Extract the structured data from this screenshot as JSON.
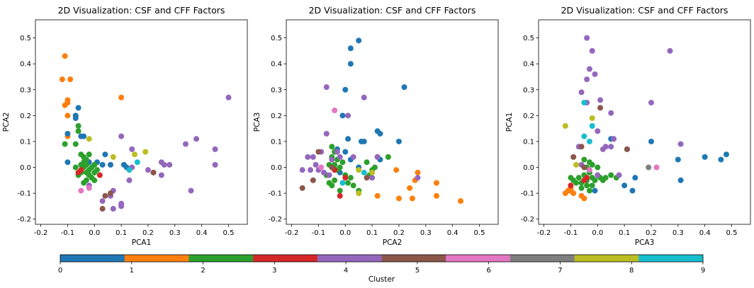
{
  "cluster_colors": [
    "#1f77b4",
    "#ff7f0e",
    "#2ca02c",
    "#d62728",
    "#9467bd",
    "#8c564b",
    "#e377c2",
    "#7f7f7f",
    "#bcbd22",
    "#17becf"
  ],
  "colorbar": {
    "label": "Cluster",
    "ticks": [
      "0",
      "1",
      "2",
      "3",
      "4",
      "5",
      "6",
      "7",
      "8",
      "9"
    ]
  },
  "chart_data": [
    {
      "type": "scatter",
      "title": "2D Visualization: CSF and CFF Factors",
      "xlabel": "PCA1",
      "ylabel": "PCA2",
      "xlim": [
        -0.22,
        0.57
      ],
      "ylim": [
        -0.22,
        0.57
      ],
      "xticks": [
        "-0.2",
        "-0.1",
        "0.0",
        "0.1",
        "0.2",
        "0.3",
        "0.4",
        "0.5"
      ],
      "yticks": [
        "-0.2",
        "-0.1",
        "0.0",
        "0.1",
        "0.2",
        "0.3",
        "0.4",
        "0.5"
      ],
      "points": [
        [
          -0.11,
          0.43,
          1
        ],
        [
          -0.12,
          0.34,
          1
        ],
        [
          -0.09,
          0.34,
          1
        ],
        [
          -0.1,
          0.25,
          1
        ],
        [
          -0.1,
          0.26,
          1
        ],
        [
          -0.11,
          0.24,
          1
        ],
        [
          -0.1,
          0.2,
          1
        ],
        [
          0.1,
          0.27,
          1
        ],
        [
          -0.1,
          0.12,
          1
        ],
        [
          -0.06,
          0.23,
          0
        ],
        [
          -0.07,
          0.2,
          0
        ],
        [
          -0.07,
          0.19,
          0
        ],
        [
          -0.1,
          0.13,
          0
        ],
        [
          -0.1,
          0.02,
          0
        ],
        [
          -0.05,
          0.12,
          0
        ],
        [
          -0.04,
          0.12,
          0
        ],
        [
          0.01,
          0.02,
          0
        ],
        [
          0.03,
          0.01,
          0
        ],
        [
          0.04,
          0.05,
          0
        ],
        [
          0.06,
          0.01,
          0
        ],
        [
          -0.02,
          0.02,
          0
        ],
        [
          0.11,
          0.01,
          0
        ],
        [
          0.12,
          0.0,
          0
        ],
        [
          -0.06,
          0.16,
          2
        ],
        [
          -0.06,
          0.14,
          2
        ],
        [
          -0.07,
          0.09,
          2
        ],
        [
          -0.11,
          0.09,
          2
        ],
        [
          -0.07,
          0.0,
          2
        ],
        [
          -0.05,
          0.05,
          2
        ],
        [
          -0.04,
          0.04,
          2
        ],
        [
          -0.03,
          0.03,
          2
        ],
        [
          -0.04,
          0.02,
          2
        ],
        [
          -0.05,
          0.01,
          2
        ],
        [
          -0.04,
          0.0,
          2
        ],
        [
          -0.03,
          -0.02,
          2
        ],
        [
          -0.02,
          -0.01,
          2
        ],
        [
          -0.01,
          0.0,
          2
        ],
        [
          0.0,
          0.01,
          2
        ],
        [
          -0.02,
          -0.03,
          2
        ],
        [
          -0.03,
          -0.05,
          2
        ],
        [
          -0.04,
          -0.06,
          2
        ],
        [
          -0.01,
          -0.04,
          2
        ],
        [
          0.0,
          -0.02,
          2
        ],
        [
          0.01,
          -0.01,
          2
        ],
        [
          -0.05,
          -0.02,
          2
        ],
        [
          -0.06,
          -0.03,
          2
        ],
        [
          -0.03,
          0.01,
          2
        ],
        [
          -0.02,
          0.05,
          2
        ],
        [
          0.0,
          -0.05,
          2
        ],
        [
          -0.06,
          -0.02,
          3
        ],
        [
          -0.05,
          -0.01,
          3
        ],
        [
          0.02,
          -0.03,
          3
        ],
        [
          0.5,
          0.27,
          4
        ],
        [
          0.38,
          0.11,
          4
        ],
        [
          0.45,
          0.07,
          4
        ],
        [
          0.45,
          0.01,
          4
        ],
        [
          0.34,
          0.09,
          4
        ],
        [
          0.36,
          -0.09,
          4
        ],
        [
          0.25,
          0.02,
          4
        ],
        [
          0.25,
          -0.03,
          4
        ],
        [
          0.26,
          0.01,
          4
        ],
        [
          0.28,
          0.01,
          4
        ],
        [
          0.2,
          -0.01,
          4
        ],
        [
          0.22,
          -0.02,
          4
        ],
        [
          0.14,
          0.07,
          4
        ],
        [
          0.1,
          0.12,
          4
        ],
        [
          0.14,
          0.0,
          4
        ],
        [
          0.13,
          -0.05,
          4
        ],
        [
          0.1,
          -0.14,
          4
        ],
        [
          0.1,
          -0.15,
          4
        ],
        [
          0.07,
          -0.16,
          4
        ],
        [
          0.03,
          -0.13,
          4
        ],
        [
          0.07,
          -0.09,
          4
        ],
        [
          0.06,
          -0.11,
          4
        ],
        [
          -0.02,
          -0.07,
          4
        ],
        [
          0.03,
          -0.16,
          5
        ],
        [
          0.04,
          -0.11,
          5
        ],
        [
          0.06,
          -0.1,
          5
        ],
        [
          0.22,
          -0.02,
          5
        ],
        [
          -0.05,
          -0.09,
          6
        ],
        [
          -0.02,
          -0.08,
          6
        ],
        [
          0.15,
          0.05,
          8
        ],
        [
          0.19,
          0.06,
          8
        ],
        [
          0.07,
          0.04,
          8
        ],
        [
          -0.02,
          0.11,
          8
        ],
        [
          0.16,
          0.02,
          9
        ],
        [
          0.13,
          -0.01,
          9
        ]
      ]
    },
    {
      "type": "scatter",
      "title": "2D Visualization: CSF and CFF Factors",
      "xlabel": "PCA2",
      "ylabel": "PCA3",
      "xlim": [
        -0.22,
        0.57
      ],
      "ylim": [
        -0.22,
        0.57
      ],
      "xticks": [
        "-0.2",
        "-0.1",
        "0.0",
        "0.1",
        "0.2",
        "0.3",
        "0.4",
        "0.5"
      ],
      "yticks": [
        "-0.2",
        "-0.1",
        "0.0",
        "0.1",
        "0.2",
        "0.3",
        "0.4",
        "0.5"
      ],
      "points": [
        [
          0.05,
          0.49,
          0
        ],
        [
          0.02,
          0.46,
          0
        ],
        [
          0.02,
          0.4,
          0
        ],
        [
          0.0,
          0.3,
          0
        ],
        [
          0.22,
          0.31,
          0
        ],
        [
          -0.01,
          0.2,
          0
        ],
        [
          0.12,
          0.14,
          0
        ],
        [
          0.13,
          0.13,
          0
        ],
        [
          0.2,
          0.1,
          0
        ],
        [
          0.07,
          0.1,
          0
        ],
        [
          0.01,
          0.11,
          0
        ],
        [
          0.06,
          0.1,
          0
        ],
        [
          0.0,
          0.06,
          0
        ],
        [
          0.13,
          0.03,
          0
        ],
        [
          -0.03,
          0.07,
          0
        ],
        [
          0.02,
          0.03,
          0
        ],
        [
          0.05,
          0.0,
          0
        ],
        [
          -0.02,
          -0.02,
          0
        ],
        [
          0.27,
          -0.02,
          1
        ],
        [
          0.26,
          -0.05,
          1
        ],
        [
          0.34,
          -0.06,
          1
        ],
        [
          0.43,
          -0.13,
          1
        ],
        [
          0.24,
          -0.08,
          1
        ],
        [
          0.25,
          -0.12,
          1
        ],
        [
          0.34,
          -0.11,
          1
        ],
        [
          0.2,
          -0.12,
          1
        ],
        [
          0.12,
          -0.11,
          1
        ],
        [
          0.19,
          -0.01,
          1
        ],
        [
          -0.05,
          0.08,
          2
        ],
        [
          -0.04,
          0.06,
          2
        ],
        [
          -0.05,
          0.04,
          2
        ],
        [
          -0.03,
          0.03,
          2
        ],
        [
          -0.01,
          0.02,
          2
        ],
        [
          -0.03,
          -0.01,
          2
        ],
        [
          -0.02,
          0.0,
          2
        ],
        [
          0.0,
          -0.03,
          2
        ],
        [
          0.02,
          -0.04,
          2
        ],
        [
          -0.04,
          -0.05,
          2
        ],
        [
          -0.05,
          -0.07,
          2
        ],
        [
          -0.06,
          -0.06,
          2
        ],
        [
          -0.02,
          -0.09,
          2
        ],
        [
          0.03,
          -0.07,
          2
        ],
        [
          0.05,
          -0.09,
          2
        ],
        [
          0.09,
          -0.03,
          2
        ],
        [
          0.1,
          -0.04,
          2
        ],
        [
          0.11,
          0.0,
          2
        ],
        [
          0.12,
          0.04,
          2
        ],
        [
          0.16,
          0.04,
          2
        ],
        [
          0.08,
          0.02,
          2
        ],
        [
          -0.06,
          0.01,
          2
        ],
        [
          -0.04,
          0.01,
          2
        ],
        [
          -0.07,
          -0.03,
          2
        ],
        [
          0.01,
          -0.06,
          2
        ],
        [
          0.1,
          -0.01,
          2
        ],
        [
          -0.04,
          -0.01,
          3
        ],
        [
          -0.02,
          -0.11,
          3
        ],
        [
          0.0,
          -0.04,
          3
        ],
        [
          -0.07,
          0.31,
          4
        ],
        [
          0.07,
          0.27,
          4
        ],
        [
          0.01,
          0.2,
          4
        ],
        [
          -0.07,
          0.13,
          4
        ],
        [
          -0.09,
          0.06,
          4
        ],
        [
          -0.14,
          0.04,
          4
        ],
        [
          -0.16,
          -0.01,
          4
        ],
        [
          -0.13,
          -0.01,
          4
        ],
        [
          -0.11,
          0.01,
          4
        ],
        [
          -0.1,
          -0.01,
          4
        ],
        [
          -0.08,
          -0.02,
          4
        ],
        [
          -0.06,
          -0.03,
          4
        ],
        [
          -0.03,
          0.06,
          4
        ],
        [
          -0.02,
          0.04,
          4
        ],
        [
          0.03,
          0.04,
          4
        ],
        [
          0.1,
          -0.04,
          4
        ],
        [
          0.12,
          0.04,
          4
        ],
        [
          0.27,
          -0.04,
          4
        ],
        [
          -0.12,
          0.04,
          4
        ],
        [
          -0.05,
          0.03,
          4
        ],
        [
          -0.16,
          -0.08,
          5
        ],
        [
          -0.12,
          -0.05,
          5
        ],
        [
          -0.1,
          0.06,
          5
        ],
        [
          -0.05,
          0.0,
          5
        ],
        [
          0.08,
          -0.04,
          5
        ],
        [
          -0.04,
          0.22,
          6
        ],
        [
          -0.09,
          0.0,
          6
        ],
        [
          0.05,
          -0.01,
          8
        ],
        [
          0.05,
          -0.1,
          8
        ],
        [
          0.1,
          -0.02,
          8
        ],
        [
          0.07,
          -0.02,
          9
        ],
        [
          -0.01,
          -0.06,
          9
        ]
      ]
    },
    {
      "type": "scatter",
      "title": "2D Visualization: CSF and CFF Factors",
      "xlabel": "PCA3",
      "ylabel": "PCA1",
      "xlim": [
        -0.22,
        0.57
      ],
      "ylim": [
        -0.22,
        0.57
      ],
      "xticks": [
        "-0.2",
        "-0.1",
        "0.0",
        "0.1",
        "0.2",
        "0.3",
        "0.4",
        "0.5"
      ],
      "yticks": [
        "-0.2",
        "-0.1",
        "0.0",
        "0.1",
        "0.2",
        "0.3",
        "0.4",
        "0.5"
      ],
      "points": [
        [
          0.48,
          0.05,
          0
        ],
        [
          0.46,
          0.03,
          0
        ],
        [
          0.4,
          0.04,
          0
        ],
        [
          0.31,
          -0.05,
          0
        ],
        [
          0.3,
          0.03,
          0
        ],
        [
          0.2,
          0.1,
          0
        ],
        [
          0.11,
          0.07,
          0
        ],
        [
          0.13,
          -0.09,
          0
        ],
        [
          0.1,
          -0.07,
          0
        ],
        [
          0.14,
          -0.04,
          0
        ],
        [
          0.06,
          0.11,
          0
        ],
        [
          -0.01,
          -0.09,
          0
        ],
        [
          0.05,
          0.11,
          0
        ],
        [
          -0.12,
          -0.1,
          1
        ],
        [
          -0.11,
          -0.09,
          1
        ],
        [
          -0.1,
          -0.09,
          1
        ],
        [
          -0.09,
          -0.1,
          1
        ],
        [
          -0.06,
          -0.11,
          1
        ],
        [
          -0.05,
          -0.12,
          1
        ],
        [
          -0.1,
          -0.08,
          1
        ],
        [
          -0.1,
          -0.04,
          2
        ],
        [
          -0.09,
          -0.05,
          2
        ],
        [
          -0.07,
          -0.04,
          2
        ],
        [
          -0.06,
          -0.06,
          2
        ],
        [
          -0.05,
          -0.03,
          2
        ],
        [
          -0.04,
          -0.05,
          2
        ],
        [
          -0.03,
          -0.02,
          2
        ],
        [
          -0.02,
          -0.04,
          2
        ],
        [
          -0.01,
          -0.05,
          2
        ],
        [
          0.0,
          -0.03,
          2
        ],
        [
          0.01,
          -0.04,
          2
        ],
        [
          0.02,
          -0.05,
          2
        ],
        [
          0.03,
          -0.04,
          2
        ],
        [
          -0.04,
          0.0,
          2
        ],
        [
          -0.03,
          0.02,
          2
        ],
        [
          -0.02,
          0.01,
          2
        ],
        [
          0.0,
          0.0,
          2
        ],
        [
          -0.08,
          -0.06,
          2
        ],
        [
          -0.06,
          -0.08,
          2
        ],
        [
          -0.04,
          -0.07,
          2
        ],
        [
          -0.02,
          -0.07,
          2
        ],
        [
          0.05,
          -0.03,
          2
        ],
        [
          0.07,
          -0.04,
          2
        ],
        [
          -0.05,
          0.03,
          2
        ],
        [
          -0.03,
          -0.09,
          2
        ],
        [
          -0.1,
          -0.07,
          3
        ],
        [
          -0.05,
          -0.05,
          3
        ],
        [
          -0.04,
          -0.04,
          3
        ],
        [
          -0.04,
          0.5,
          4
        ],
        [
          -0.02,
          0.45,
          4
        ],
        [
          -0.03,
          0.38,
          4
        ],
        [
          -0.01,
          0.36,
          4
        ],
        [
          -0.04,
          0.34,
          4
        ],
        [
          0.27,
          0.45,
          4
        ],
        [
          -0.06,
          0.29,
          4
        ],
        [
          -0.04,
          0.25,
          4
        ],
        [
          0.01,
          0.26,
          4
        ],
        [
          0.2,
          0.25,
          4
        ],
        [
          0.05,
          0.21,
          4
        ],
        [
          0.0,
          0.14,
          4
        ],
        [
          0.06,
          0.11,
          4
        ],
        [
          0.03,
          0.08,
          4
        ],
        [
          0.05,
          0.08,
          4
        ],
        [
          0.31,
          0.09,
          4
        ],
        [
          0.02,
          0.07,
          4
        ],
        [
          0.0,
          -0.03,
          4
        ],
        [
          0.08,
          -0.03,
          4
        ],
        [
          -0.07,
          0.08,
          4
        ],
        [
          -0.06,
          0.01,
          4
        ],
        [
          -0.09,
          0.04,
          5
        ],
        [
          -0.06,
          0.08,
          5
        ],
        [
          0.01,
          0.23,
          5
        ],
        [
          0.11,
          0.07,
          5
        ],
        [
          -0.05,
          0.0,
          5
        ],
        [
          0.22,
          0.0,
          6
        ],
        [
          -0.03,
          -0.01,
          6
        ],
        [
          0.19,
          0.0,
          7
        ],
        [
          -0.12,
          0.16,
          8
        ],
        [
          -0.02,
          0.19,
          8
        ],
        [
          -0.08,
          0.01,
          8
        ],
        [
          -0.05,
          0.12,
          9
        ],
        [
          -0.02,
          0.16,
          9
        ],
        [
          -0.05,
          0.25,
          9
        ],
        [
          -0.03,
          0.1,
          9
        ]
      ]
    }
  ]
}
